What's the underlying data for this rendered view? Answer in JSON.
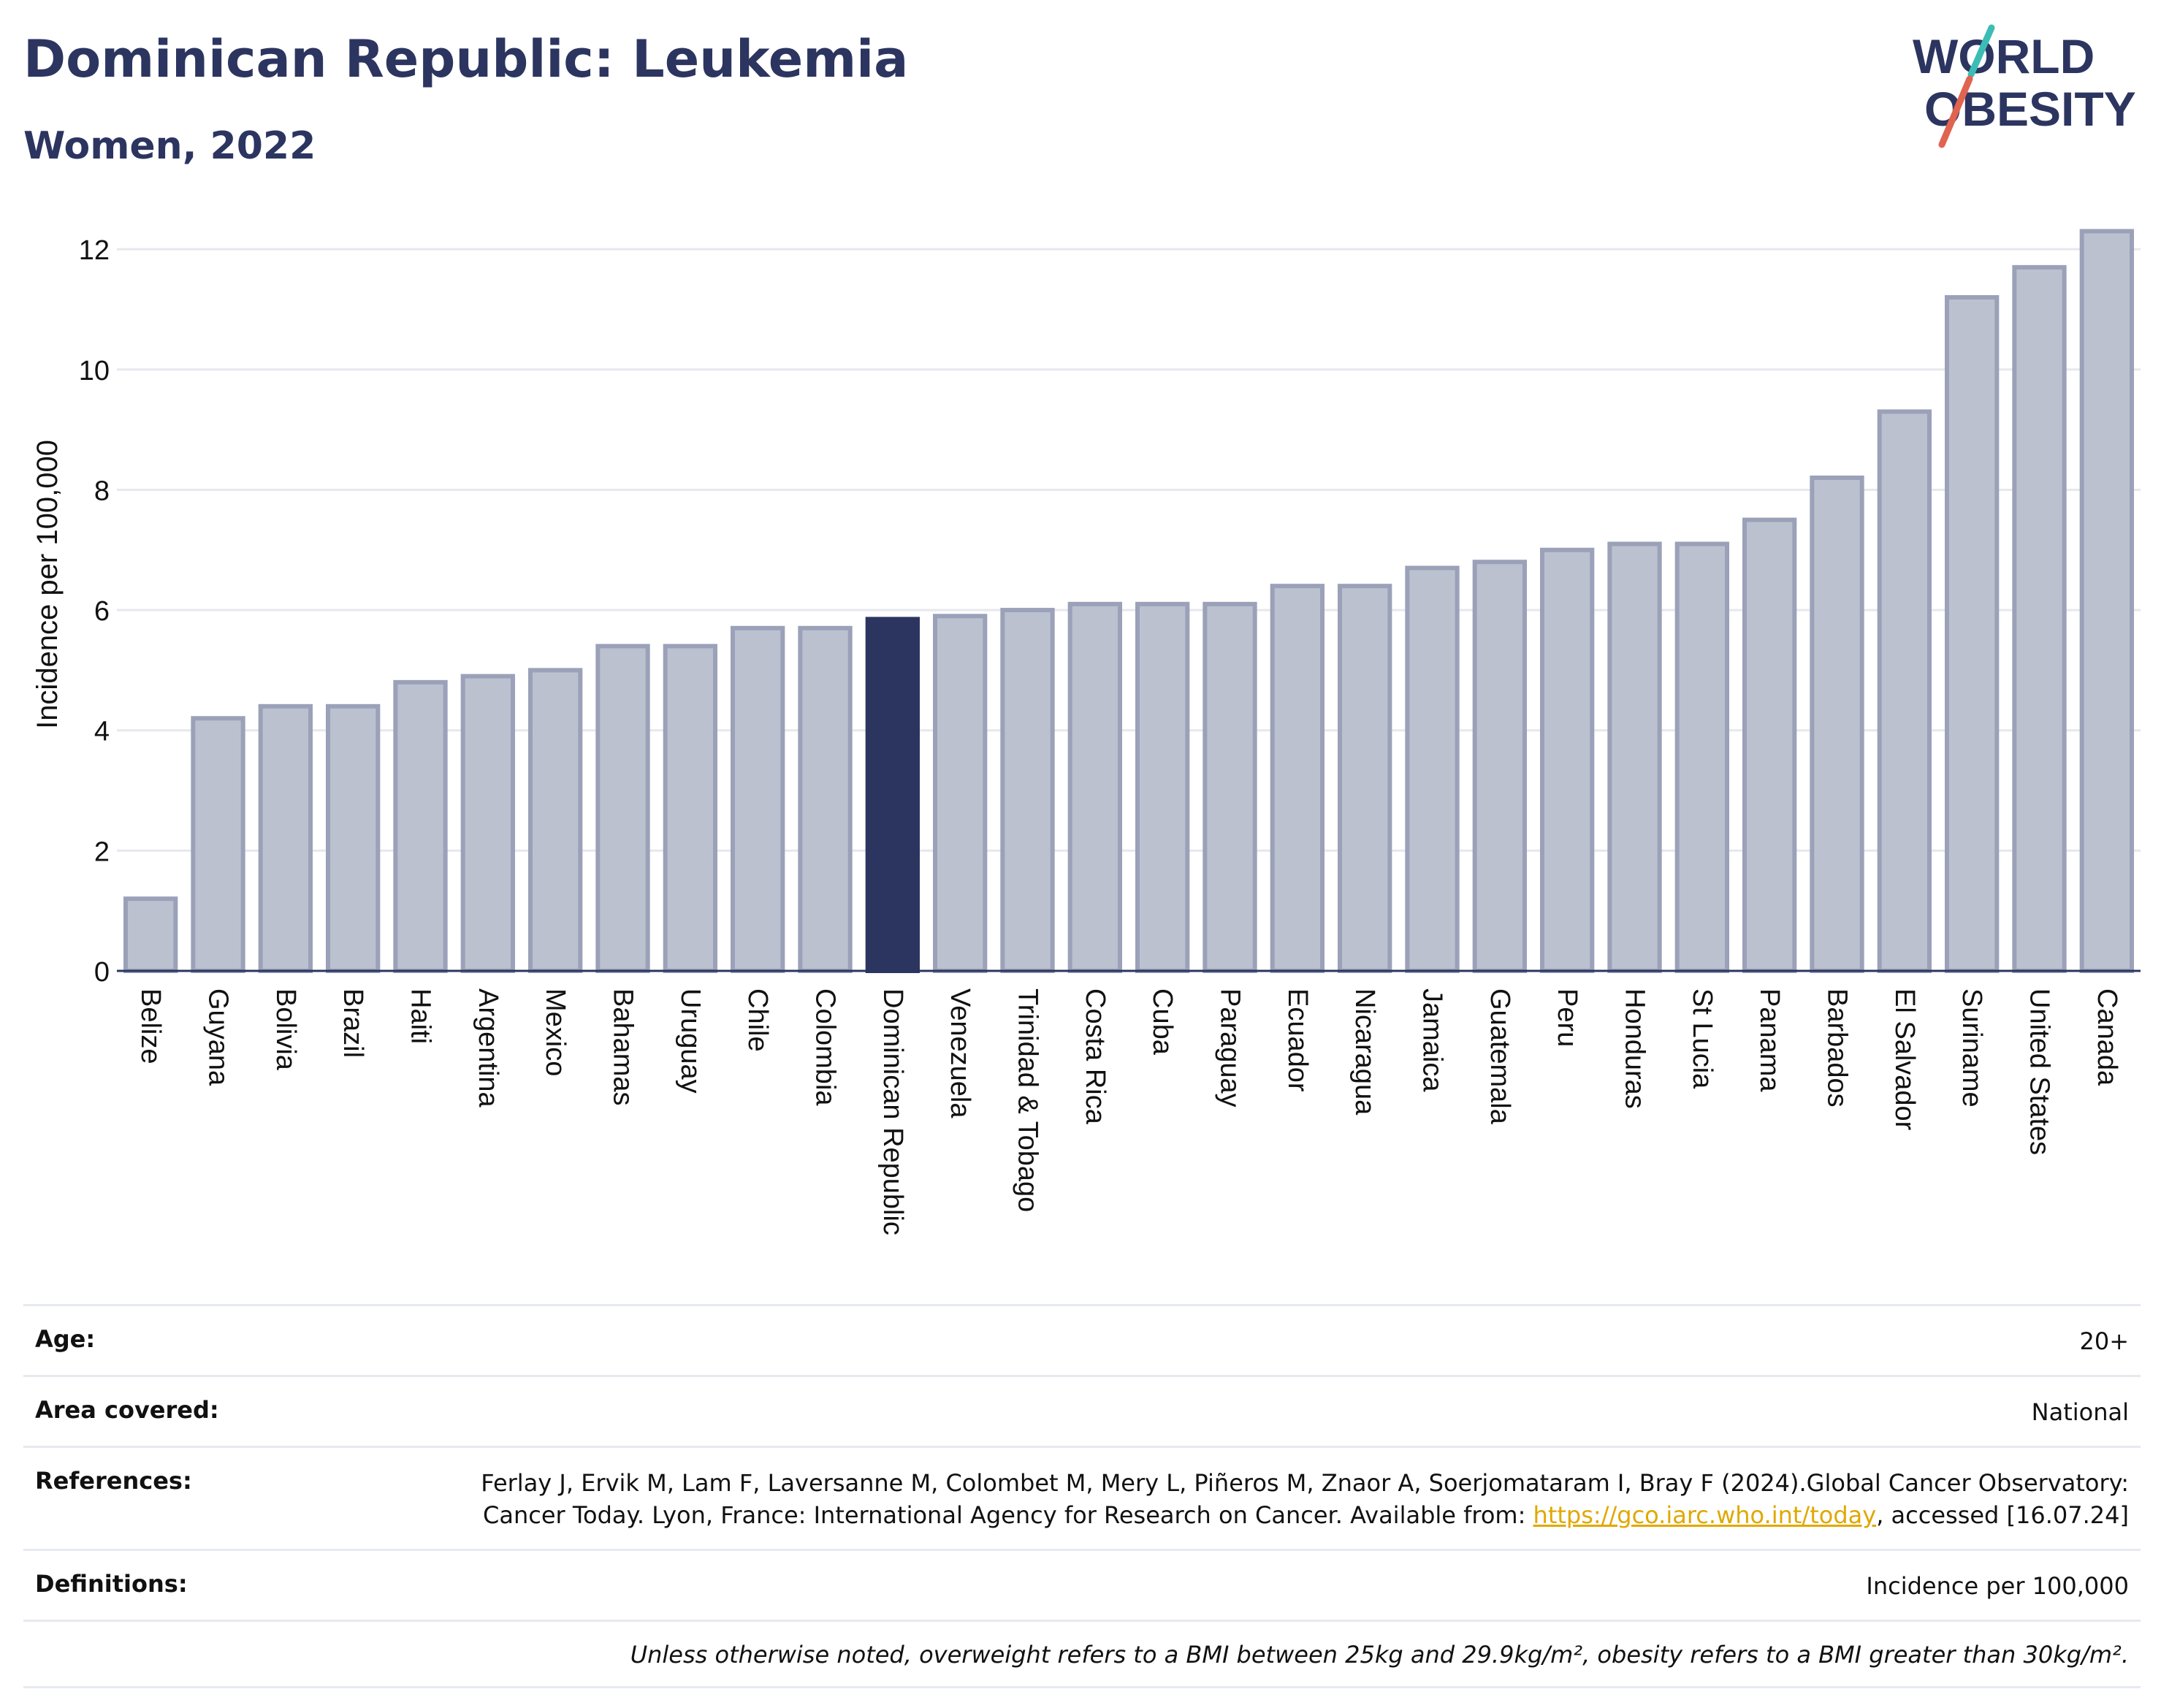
{
  "header": {
    "title": "Dominican Republic: Leukemia",
    "subtitle": "Women, 2022"
  },
  "logo": {
    "line1": "WORLD",
    "line2": "OBESITY",
    "colors": {
      "text": "#2c3560",
      "slash_teal": "#3bbdb5",
      "slash_red": "#e0644f"
    }
  },
  "chart_data": {
    "type": "bar",
    "title": "Dominican Republic: Leukemia",
    "subtitle": "Women, 2022",
    "ylabel": "Incidence per 100,000",
    "xlabel": "",
    "ylim": [
      0,
      12.5
    ],
    "yticks": [
      0,
      2,
      4,
      6,
      8,
      10,
      12
    ],
    "grid": true,
    "highlight": "Dominican Republic",
    "colors": {
      "bar": "#bcc1d0",
      "bar_edge": "#9aa1b8",
      "highlight": "#2c3560",
      "grid": "#e6e8ee",
      "axis": "#2c3560"
    },
    "categories": [
      "Belize",
      "Guyana",
      "Bolivia",
      "Brazil",
      "Haiti",
      "Argentina",
      "Mexico",
      "Bahamas",
      "Uruguay",
      "Chile",
      "Colombia",
      "Dominican Republic",
      "Venezuela",
      "Trinidad & Tobago",
      "Costa Rica",
      "Cuba",
      "Paraguay",
      "Ecuador",
      "Nicaragua",
      "Jamaica",
      "Guatemala",
      "Peru",
      "Honduras",
      "St Lucia",
      "Panama",
      "Barbados",
      "El Salvador",
      "Suriname",
      "United States",
      "Canada"
    ],
    "values": [
      1.2,
      4.2,
      4.4,
      4.4,
      4.8,
      4.9,
      5.0,
      5.4,
      5.4,
      5.7,
      5.7,
      5.85,
      5.9,
      6.0,
      6.1,
      6.1,
      6.1,
      6.4,
      6.4,
      6.7,
      6.8,
      7.0,
      7.1,
      7.1,
      7.5,
      8.2,
      9.3,
      11.2,
      11.7,
      12.3
    ]
  },
  "meta": {
    "age_label": "Age:",
    "age_value": "20+",
    "area_label": "Area covered:",
    "area_value": "National",
    "references_label": "References:",
    "references_text": "Ferlay J, Ervik M, Lam F, Laversanne M, Colombet M, Mery L, Piñeros M, Znaor A, Soerjomataram I, Bray F (2024).Global Cancer Observatory: Cancer Today. Lyon, France: International Agency for Research on Cancer. Available from:",
    "references_link": "https://gco.iarc.who.int/today",
    "references_suffix": ", accessed [16.07.24]",
    "definitions_label": "Definitions:",
    "definitions_value": "Incidence per 100,000",
    "note": "Unless otherwise noted, overweight refers to a BMI between 25kg and 29.9kg/m², obesity refers to a BMI greater than 30kg/m²."
  }
}
